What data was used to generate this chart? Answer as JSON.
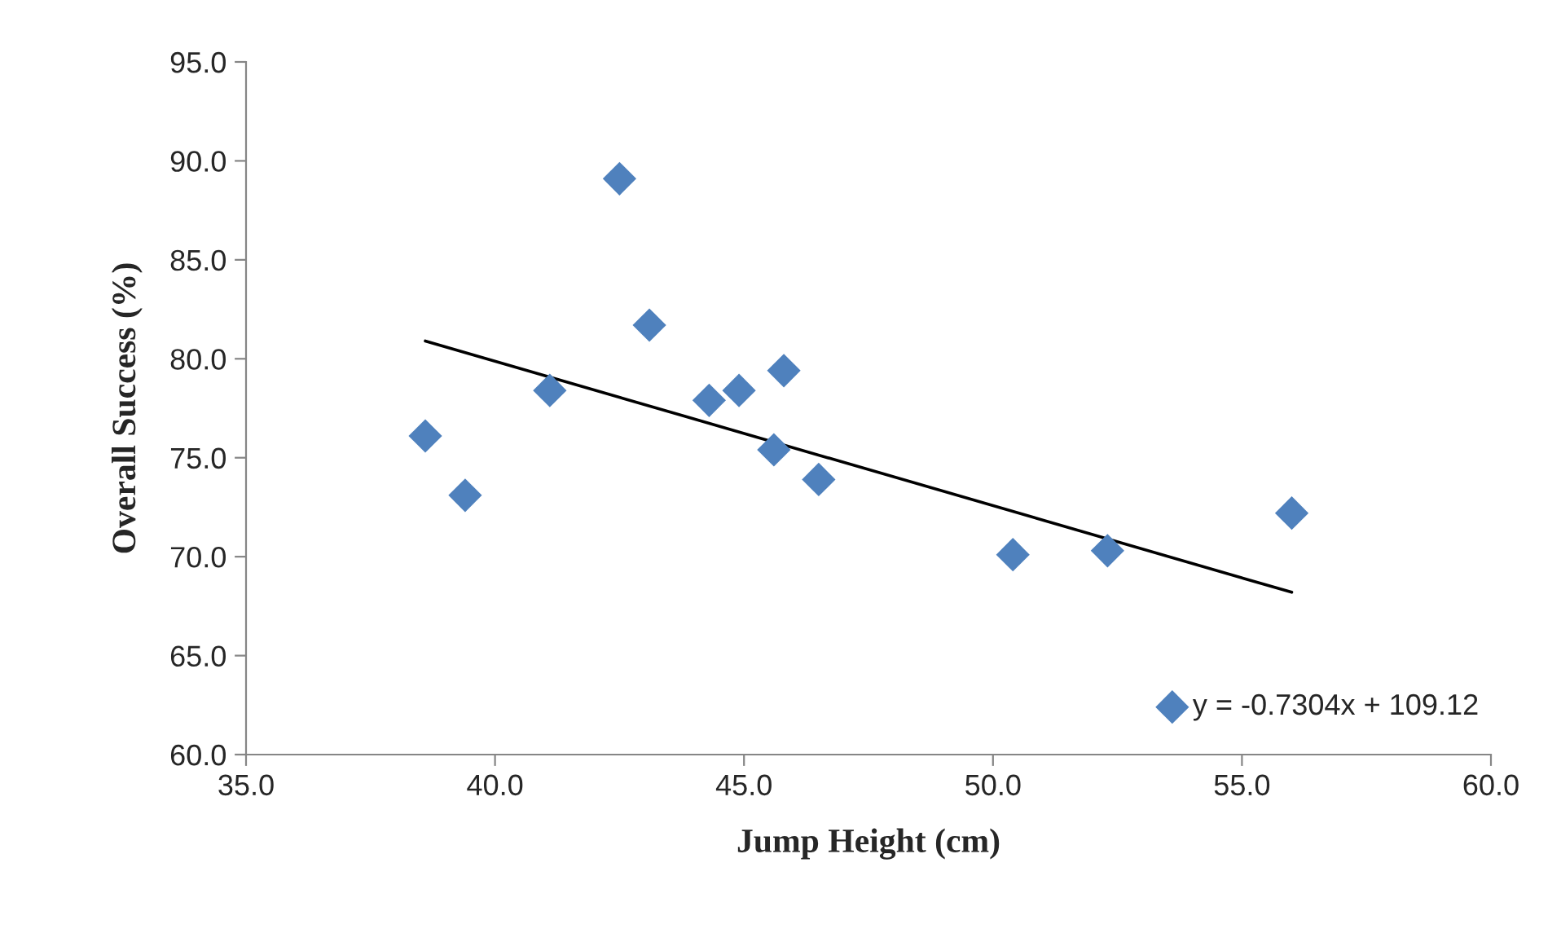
{
  "chart_data": {
    "type": "scatter",
    "xlabel": "Jump Height (cm)",
    "ylabel": "Overall Success (%)",
    "grid": false,
    "series": [
      {
        "marker": "diamond",
        "color": "#4f81bd",
        "x": [
          38.6,
          39.4,
          41.1,
          42.5,
          43.1,
          44.3,
          44.9,
          45.8,
          45.6,
          46.5,
          50.4,
          52.3,
          56.0,
          53.6
        ],
        "values": [
          76.1,
          73.1,
          78.4,
          89.1,
          81.7,
          77.9,
          78.4,
          79.4,
          75.4,
          73.9,
          70.1,
          70.3,
          72.2,
          62.4
        ]
      },
      {
        "type": "line",
        "color": "#000000",
        "x": [
          38.6,
          56.0
        ],
        "values": [
          80.9,
          68.2
        ]
      }
    ],
    "annotations": [
      {
        "text": "y = -0.7304x + 109.12",
        "x": 53.6,
        "y": 62.4
      }
    ],
    "xlim": [
      35,
      60
    ],
    "ylim": [
      60,
      95
    ],
    "xticks": [
      {
        "value": 35,
        "label": "35.0"
      },
      {
        "value": 40,
        "label": "40.0"
      },
      {
        "value": 45,
        "label": "45.0"
      },
      {
        "value": 50,
        "label": "50.0"
      },
      {
        "value": 55,
        "label": "55.0"
      },
      {
        "value": 60,
        "label": "60.0"
      }
    ],
    "yticks": [
      {
        "value": 60,
        "label": "60.0"
      },
      {
        "value": 65,
        "label": "65.0"
      },
      {
        "value": 70,
        "label": "70.0"
      },
      {
        "value": 75,
        "label": "75.0"
      },
      {
        "value": 80,
        "label": "80.0"
      },
      {
        "value": 85,
        "label": "85.0"
      },
      {
        "value": 90,
        "label": "90.0"
      },
      {
        "value": 95,
        "label": "95.0"
      }
    ]
  }
}
